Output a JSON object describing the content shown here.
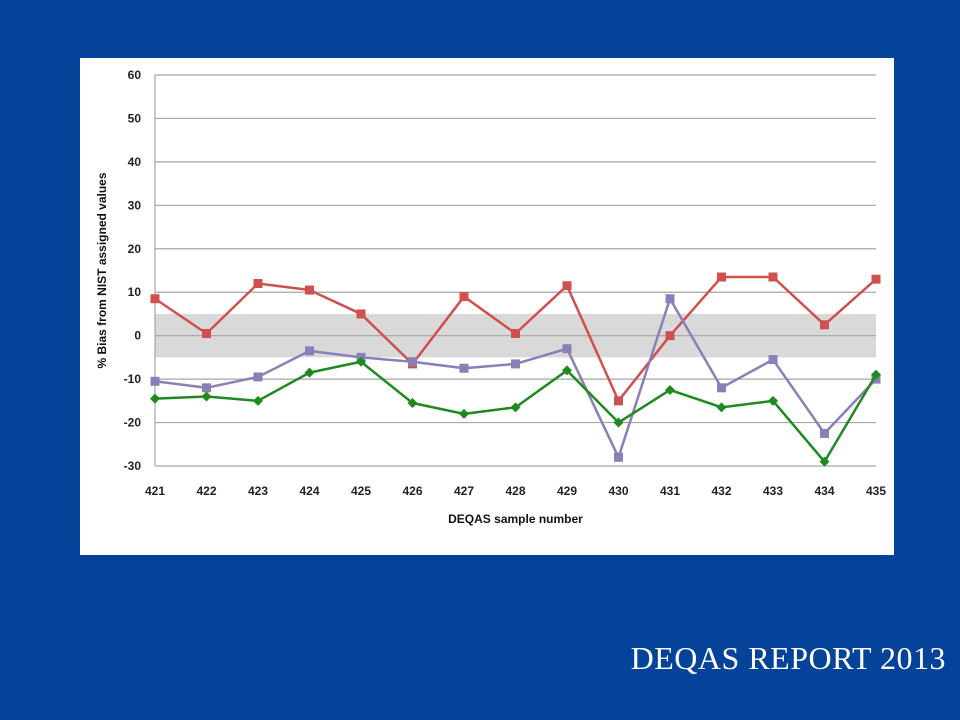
{
  "footer_text": "DEQAS REPORT 2013",
  "chart_data": {
    "type": "line",
    "title": "",
    "xlabel": "DEQAS sample number",
    "ylabel": "% Bias from NIST assigned values",
    "categories": [
      "421",
      "422",
      "423",
      "424",
      "425",
      "426",
      "427",
      "428",
      "429",
      "430",
      "431",
      "432",
      "433",
      "434",
      "435"
    ],
    "ylim": [
      -30,
      60
    ],
    "yticks": [
      60,
      50,
      40,
      30,
      20,
      10,
      0,
      -10,
      -20,
      -30
    ],
    "grid": true,
    "legend": "none",
    "band": {
      "from": -5,
      "to": 5,
      "color": "#d9d9d9"
    },
    "series": [
      {
        "color": "#d0504f",
        "marker": "square",
        "values": [
          8.5,
          0.5,
          12,
          10.5,
          5,
          -6.5,
          9,
          0.5,
          11.5,
          -15,
          0,
          13.5,
          13.5,
          2.5,
          13
        ]
      },
      {
        "color": "#8a80b8",
        "marker": "square",
        "values": [
          -10.5,
          -12,
          -9.5,
          -3.5,
          -5,
          -6,
          -7.5,
          -6.5,
          -3,
          -28,
          8.5,
          -12,
          -5.5,
          -22.5,
          -10
        ]
      },
      {
        "color": "#1f8a1f",
        "marker": "diamond",
        "values": [
          -14.5,
          -14,
          -15,
          -8.5,
          -6,
          -15.5,
          -18,
          -16.5,
          -8,
          -20,
          -12.5,
          -16.5,
          -15,
          -29,
          -9
        ]
      }
    ]
  }
}
